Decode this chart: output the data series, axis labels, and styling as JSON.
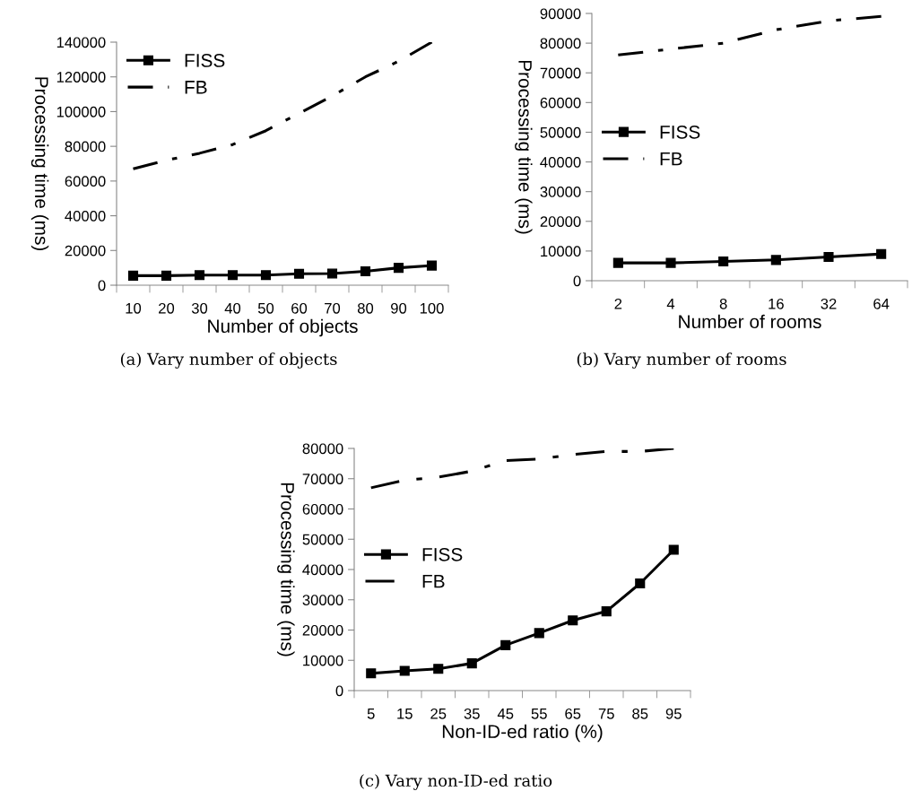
{
  "chart_data": [
    {
      "type": "line",
      "xlabel": "Number of objects",
      "ylabel": "Processing time (ms)",
      "categories": [
        "10",
        "20",
        "30",
        "40",
        "50",
        "60",
        "70",
        "80",
        "90",
        "100"
      ],
      "ylim": [
        0,
        140000
      ],
      "yticks": [
        0,
        20000,
        40000,
        60000,
        80000,
        100000,
        120000,
        140000
      ],
      "legend": "top left",
      "grid": false,
      "annotations": [
        "(a) Vary number of objects"
      ],
      "series": [
        {
          "name": "FISS",
          "color": "#000000",
          "marker": "square",
          "line_style": "solid",
          "values": [
            5500,
            5500,
            5800,
            5800,
            5800,
            6600,
            6700,
            8000,
            10000,
            11300
          ]
        },
        {
          "name": "FB",
          "color": "#000000",
          "marker": "none",
          "line_style": "dashdot",
          "values": [
            67000,
            72000,
            76000,
            81000,
            89000,
            99000,
            109000,
            120000,
            129000,
            140000
          ]
        }
      ]
    },
    {
      "type": "line",
      "xlabel": "Number of rooms",
      "ylabel": "Processing time (ms)",
      "categories": [
        "2",
        "4",
        "8",
        "16",
        "32",
        "64"
      ],
      "ylim": [
        0,
        90000
      ],
      "yticks": [
        0,
        10000,
        20000,
        30000,
        40000,
        50000,
        60000,
        70000,
        80000,
        90000
      ],
      "legend": "left",
      "grid": false,
      "annotations": [
        "(b) Vary number of rooms"
      ],
      "series": [
        {
          "name": "FISS",
          "color": "#000000",
          "marker": "square",
          "line_style": "solid",
          "values": [
            6000,
            6000,
            6500,
            7000,
            8000,
            9000
          ]
        },
        {
          "name": "FB",
          "color": "#000000",
          "marker": "none",
          "line_style": "dashdot",
          "values": [
            76000,
            78000,
            80000,
            84500,
            87500,
            89000
          ]
        }
      ]
    },
    {
      "type": "line",
      "xlabel": "Non-ID-ed ratio (%)",
      "ylabel": "Processing time (ms)",
      "categories": [
        "5",
        "15",
        "25",
        "35",
        "45",
        "55",
        "65",
        "75",
        "85",
        "95"
      ],
      "ylim": [
        0,
        80000
      ],
      "yticks": [
        0,
        10000,
        20000,
        30000,
        40000,
        50000,
        60000,
        70000,
        80000
      ],
      "legend": "left",
      "grid": false,
      "annotations": [
        "(c) Vary non-ID-ed ratio"
      ],
      "series": [
        {
          "name": "FISS",
          "color": "#000000",
          "marker": "square",
          "line_style": "solid",
          "values": [
            5700,
            6500,
            7200,
            9000,
            15000,
            19000,
            23200,
            26200,
            35400,
            46500
          ]
        },
        {
          "name": "FB",
          "color": "#000000",
          "marker": "none",
          "line_style": "dashdot",
          "values": [
            67000,
            69500,
            70500,
            72500,
            76000,
            76500,
            78000,
            79000,
            79000,
            80000
          ]
        }
      ]
    }
  ]
}
